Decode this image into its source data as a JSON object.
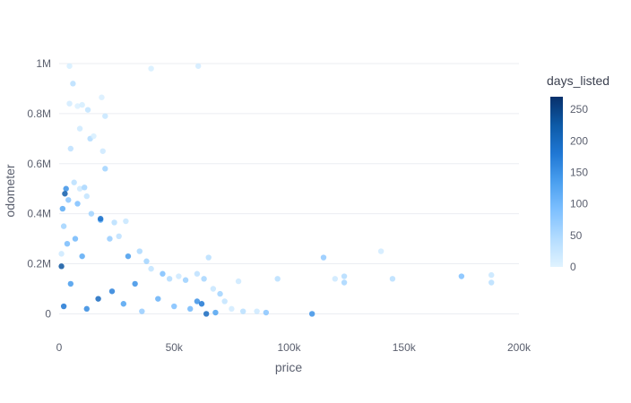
{
  "chart_data": {
    "type": "scatter",
    "title": "",
    "xlabel": "price",
    "ylabel": "odometer",
    "xlim": [
      0,
      200000
    ],
    "ylim": [
      -70000,
      1050000
    ],
    "x_ticks": [
      {
        "value": 0,
        "label": "0"
      },
      {
        "value": 50000,
        "label": "50k"
      },
      {
        "value": 100000,
        "label": "100k"
      },
      {
        "value": 150000,
        "label": "150k"
      },
      {
        "value": 200000,
        "label": "200k"
      }
    ],
    "y_ticks": [
      {
        "value": 0,
        "label": "0"
      },
      {
        "value": 200000,
        "label": "0.2M"
      },
      {
        "value": 400000,
        "label": "0.4M"
      },
      {
        "value": 600000,
        "label": "0.6M"
      },
      {
        "value": 800000,
        "label": "0.8M"
      },
      {
        "value": 1000000,
        "label": "1M"
      }
    ],
    "grid": "horizontal",
    "colorbar": {
      "title": "days_listed",
      "range": [
        0,
        270
      ],
      "ticks": [
        0,
        50,
        100,
        150,
        200,
        250
      ],
      "colorscale": [
        "#e0f3ff",
        "#b3dcff",
        "#7ec0ff",
        "#4a9fef",
        "#1f77d4",
        "#0d5aa7",
        "#08306b"
      ],
      "placement": "right"
    },
    "points": [
      [
        1000,
        240000,
        20
      ],
      [
        4500,
        990000,
        10
      ],
      [
        6000,
        920000,
        40
      ],
      [
        4500,
        840000,
        15
      ],
      [
        8000,
        830000,
        5
      ],
      [
        10000,
        835000,
        12
      ],
      [
        12500,
        815000,
        30
      ],
      [
        18500,
        865000,
        8
      ],
      [
        20000,
        790000,
        25
      ],
      [
        9000,
        740000,
        18
      ],
      [
        13500,
        700000,
        45
      ],
      [
        15000,
        710000,
        10
      ],
      [
        19000,
        650000,
        20
      ],
      [
        5000,
        660000,
        35
      ],
      [
        20000,
        580000,
        60
      ],
      [
        40000,
        980000,
        10
      ],
      [
        60500,
        990000,
        15
      ],
      [
        3000,
        500000,
        150
      ],
      [
        2500,
        480000,
        220
      ],
      [
        1500,
        420000,
        120
      ],
      [
        4000,
        455000,
        80
      ],
      [
        6500,
        525000,
        40
      ],
      [
        9000,
        500000,
        20
      ],
      [
        11000,
        505000,
        55
      ],
      [
        12000,
        470000,
        30
      ],
      [
        8000,
        440000,
        90
      ],
      [
        14000,
        400000,
        60
      ],
      [
        18000,
        375000,
        110
      ],
      [
        24000,
        365000,
        40
      ],
      [
        29000,
        370000,
        25
      ],
      [
        22000,
        300000,
        70
      ],
      [
        26000,
        310000,
        35
      ],
      [
        35000,
        250000,
        50
      ],
      [
        30000,
        230000,
        140
      ],
      [
        38000,
        210000,
        60
      ],
      [
        40000,
        180000,
        30
      ],
      [
        45000,
        160000,
        90
      ],
      [
        48000,
        140000,
        45
      ],
      [
        52000,
        150000,
        20
      ],
      [
        55000,
        135000,
        65
      ],
      [
        60000,
        160000,
        35
      ],
      [
        63000,
        140000,
        55
      ],
      [
        65000,
        225000,
        40
      ],
      [
        67000,
        100000,
        25
      ],
      [
        70000,
        80000,
        60
      ],
      [
        72000,
        50000,
        30
      ],
      [
        75000,
        20000,
        15
      ],
      [
        78000,
        130000,
        20
      ],
      [
        80000,
        10000,
        40
      ],
      [
        86000,
        10000,
        20
      ],
      [
        90000,
        5000,
        80
      ],
      [
        95000,
        140000,
        40
      ],
      [
        110000,
        0,
        150
      ],
      [
        115000,
        225000,
        75
      ],
      [
        120000,
        140000,
        20
      ],
      [
        124000,
        150000,
        45
      ],
      [
        124000,
        125000,
        55
      ],
      [
        140000,
        250000,
        15
      ],
      [
        145000,
        140000,
        40
      ],
      [
        175000,
        150000,
        90
      ],
      [
        188000,
        155000,
        25
      ],
      [
        188000,
        125000,
        40
      ],
      [
        60000,
        50000,
        150
      ],
      [
        62000,
        40000,
        180
      ],
      [
        64000,
        0,
        200
      ],
      [
        68000,
        5000,
        130
      ],
      [
        57000,
        20000,
        100
      ],
      [
        1000,
        190000,
        230
      ],
      [
        2000,
        30000,
        180
      ],
      [
        5000,
        120000,
        140
      ],
      [
        12000,
        20000,
        160
      ],
      [
        17000,
        60000,
        200
      ],
      [
        23000,
        90000,
        170
      ],
      [
        28000,
        40000,
        130
      ],
      [
        33000,
        120000,
        150
      ],
      [
        18000,
        380000,
        190
      ],
      [
        10000,
        230000,
        120
      ],
      [
        7000,
        300000,
        100
      ],
      [
        43000,
        60000,
        110
      ],
      [
        50000,
        30000,
        90
      ],
      [
        36000,
        10000,
        70
      ],
      [
        2000,
        350000,
        60
      ],
      [
        3500,
        280000,
        95
      ]
    ]
  }
}
